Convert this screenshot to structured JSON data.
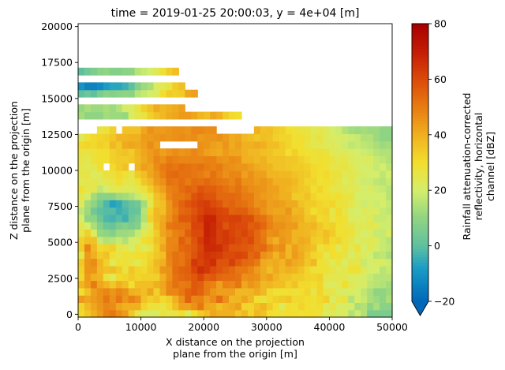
{
  "chart_data": {
    "type": "heatmap",
    "title": "time = 2019-01-25 20:00:03, y = 4e+04 [m]",
    "xlabel": [
      "X distance on the projection",
      "plane from the origin [m]"
    ],
    "ylabel": [
      "Z distance on the projection",
      "plane from the origin [m]"
    ],
    "xlim": [
      0,
      50000
    ],
    "ylim": [
      -200,
      20200
    ],
    "xticks": [
      0,
      10000,
      20000,
      30000,
      40000,
      50000
    ],
    "yticks": [
      0,
      2500,
      5000,
      7500,
      10000,
      12500,
      15000,
      17500,
      20000
    ],
    "colorbar": {
      "label": [
        "Rainfall attenuation-corrected",
        "reflectivity, horizontal",
        "channel [dBZ]"
      ],
      "range": [
        -20,
        80
      ],
      "ticks": [
        -20,
        0,
        20,
        40,
        60,
        80
      ],
      "extend": "min",
      "colormap_stops": [
        {
          "value": -20,
          "color": "#0067b8"
        },
        {
          "value": -8,
          "color": "#1a9cc6"
        },
        {
          "value": 0,
          "color": "#5fc0a0"
        },
        {
          "value": 10,
          "color": "#8fd482"
        },
        {
          "value": 20,
          "color": "#d4ee6c"
        },
        {
          "value": 30,
          "color": "#f2de2e"
        },
        {
          "value": 40,
          "color": "#f0b020"
        },
        {
          "value": 50,
          "color": "#e87c12"
        },
        {
          "value": 60,
          "color": "#db4a0a"
        },
        {
          "value": 70,
          "color": "#c41c04"
        },
        {
          "value": 80,
          "color": "#a80000"
        }
      ]
    },
    "grid": {
      "x_min": 0,
      "x_max": 50000,
      "nx": 50,
      "z_min": -200,
      "z_max": 20200,
      "nz": 40,
      "rows_bottom_to_top": [
        "31,35,40,44,49,51,47,44,35,26,22,22,22,27,25,26,30,23,30,34,37,42,40,40,40,35,38,32,38,36,30,29,29,30,30,29,30,30,28,22,24,22,22,15,19,15,6,6,6,6",
        "32,38,42,45,48,47,42,40,40,40,32,28,28,26,31,37,43,43,46,51,42,41,37,40,41,43,32,32,36,39,34,30,23,30,29,32,30,28,30,23,26,22,21,21,14,15,10,14,9,9",
        "44,42,44,46,51,46,51,45,49,46,36,33,35,31,33,40,46,55,48,49,44,47,53,46,38,39,42,38,30,28,31,33,34,35,31,31,30,29,31,33,22,26,27,15,21,18,14,12,10,14",
        "30,36,43,46,48,45,48,46,40,39,37,42,33,41,48,48,51,55,57,55,50,45,43,43,43,38,38,39,41,38,31,29,29,30,28,30,32,26,32,26,26,22,21,22,20,17,14,10,10,12",
        "39,43,50,42,39,35,40,37,30,37,37,37,40,42,48,52,50,51,57,56,50,49,43,49,48,51,42,45,43,38,39,37,37,33,36,31,31,30,32,24,22,24,30,24,22,21,17,16,15,13",
        "32,44,40,39,28,24,31,32,34,32,33,33,33,40,46,52,54,55,57,61,56,57,54,53,53,52,46,47,46,41,43,39,36,36,34,34,32,32,33,25,25,25,25,22,22,21,18,16,16,16",
        "33,45,45,38,36,37,34,28,35,32,31,34,37,45,46,53,55,56,61,66,64,60,58,56,54,51,51,48,44,41,37,41,38,40,39,36,32,28,29,29,26,24,25,29,29,23,20,20,16,18",
        "35,45,47,39,33,23,29,28,27,24,28,33,38,40,48,52,51,55,64,61,64,66,58,58,62,57,54,53,50,41,40,41,39,44,41,40,35,38,29,27,24,27,21,26,26,18,20,22,22,19",
        "26,44,40,34,36,30,26,29,28,30,30,32,35,37,49,52,51,54,58,62,65,64,63,60,60,61,60,54,56,46,44,39,44,38,44,41,36,32,31,25,30,29,27,21,25,22,20,16,17,14",
        "34,48,38,31,32,33,26,25,21,27,23,26,34,42,48,49,54,55,57,61,67,67,66,62,58,58,57,56,53,54,49,45,47,38,43,40,38,36,28,31,30,24,29,24,28,20,24,21,18,17",
        "33,36,36,18,15,16,18,15,21,22,30,31,36,39,48,48,56,52,58,63,68,66,62,64,62,60,58,60,54,51,43,40,45,43,39,41,40,34,33,36,31,32,28,26,21,23,24,23,18,16",
        "26,33,22,11,10,8,12,12,13,18,24,27,34,42,45,49,50,56,60,60,69,67,62,64,61,59,61,58,54,50,46,47,44,43,39,39,38,36,34,37,34,29,30,28,24,20,22,18,18,22",
        "25,20,14,8,3,2,6,8,6,8,19,25,37,42,51,52,52,53,61,61,69,67,63,58,61,60,60,56,57,54,49,46,46,44,44,39,38,39,35,32,33,30,28,27,23,24,25,24,19,19",
        "20,10,10,3,-2,-3,-1,-4,3,6,15,33,38,41,46,51,57,57,60,64,68,68,62,61,62,62,59,59,53,52,48,44,44,43,41,40,35,36,31,32,27,30,29,22,22,22,24,18,18,19",
        "17,12,4,0,-1,-1,-4,-2,1,2,16,31,38,37,45,49,54,55,58,61,64,63,61,60,55,56,56,52,50,46,43,42,42,45,38,39,34,30,32,33,26,31,26,22,20,23,22,22,18,17",
        "23,13,10,4,-2,-7,-5,-1,2,4,13,25,35,37,45,51,55,58,60,62,63,60,58,54,55,53,52,50,46,47,43,44,43,41,41,36,34,34,32,31,32,28,28,25,22,19,21,19,20,18",
        "25,21,13,9,9,9,12,13,15,18,23,27,36,39,48,51,51,53,58,60,58,58,54,54,54,53,50,50,46,44,43,42,40,40,34,34,36,32,30,30,29,30,27,27,20,20,20,20,20,16",
        "29,25,25,17,20,24,24,23,23,25,28,34,40,43,49,50,53,55,54,58,56,56,54,52,50,52,49,47,46,45,43,43,40,39,37,35,34,30,32,29,26,26,25,24,23,20,22,19,18,16",
        "24,25,25,23,25,26,30,26,25,29,35,38,44,46,52,51,53,50,53,52,54,52,51,50,48,51,46,46,44,45,43,40,40,40,38,35,32,32,29,30,28,26,22,25,21,19,19,17,16,18",
        "26,26,22,24,28,28,31,29,26,34,37,42,45,49,53,54,52,52,51,50,48,52,49,46,48,48,43,46,43,43,39,39,38,38,36,35,34,31,30,31,28,28,24,25,23,21,20,20,17,20",
        "25,24,25,30,N,31,34,36,N,39,43,42,47,50,52,51,53,52,51,52,50,49,50,47,46,45,45,43,41,40,39,36,36,35,34,34,33,31,30,29,26,26,27,24,22,20,21,18,20,17",
        "26,25,28,30,30,33,34,34,35,38,41,44,48,46,50,49,48,48,48,48,49,49,46,45,47,46,40,40,38,40,36,36,36,35,35,33,31,28,30,29,27,25,26,23,21,22,22,18,17,15",
        "27,27,28,30,30,33,35,36,34,39,42,44,46,43,45,47,45,46,48,46,43,42,41,44,42,42,40,38,38,37,36,34,34,30,33,30,29,29,28,28,24,23,23,22,20,19,18,16,15,15",
        "31,32,31,33,32,38,35,41,42,41,43,47,43,N,N,N,N,N,N,46,45,43,42,45,41,43,40,40,41,40,37,37,34,32,30,30,27,25,25,23,23,22,19,17,18,17,16,14,12,13",
        "23,29,31,32,33,35,39,39,40,40,44,44,45,46,45,46,47,46,47,44,45,45,46,44,41,42,38,37,35,37,36,33,32,32,29,30,28,25,27,23,22,21,21,19,18,15,15,12,10,10",
        "N,N,N,27,28,33,N,36,36,36,42,46,44,44,45,46,46,45,48,48,47,47,N,N,N,N,N,N,40,36,37,34,33,30,29,27,27,24,25,23,20,19,15,13,12,13,12,12,10,10",
        "N,N,N,N,N,N,N,N,N,N,N,N,N,N,N,N,N,N,N,N,N,N,N,N,N,N,N,N,N,N,N,N,N,N,N,N,N,N,N,N,N,N,N,N,N,N,N,N,N,N",
        "13,10,10,10,13,12,12,11,22,25,27,33,36,38,41,42,44,44,42,39,37,42,40,34,31,30,N,N,N,N,N,N,N,N,N,N,N,N,N,N,N,N,N,N,N,N,N,N,N,N",
        "11,14,12,12,14,12,15,21,22,27,33,36,41,38,40,41,43,N,N,N,N,N,N,N,N,N,N,N,N,N,N,N,N,N,N,N,N,N,N,N,N,N,N,N,N,N,N,N,N,N",
        "N,N,N,N,N,N,N,N,N,N,N,N,N,N,N,N,N,N,N,N,N,N,N,N,N,N,N,N,N,N,N,N,N,N,N,N,N,N,N,N,N,N,N,N,N,N,N,N,N,N",
        "0,3,0,6,9,8,9,10,9,16,18,20,22,30,34,33,34,42,43,N,N,N,N,N,N,N,N,N,N,N,N,N,N,N,N,N,N,N,N,N,N,N,N,N,N,N,N,N,N,N",
        "-10,-14,-14,-12,-8,-6,-6,-4,0,8,12,14,22,24,27,34,37,N,N,N,N,N,N,N,N,N,N,N,N,N,N,N,N,N,N,N,N,N,N,N,N,N,N,N,N,N,N,N,N,N",
        "N,N,N,N,N,N,N,N,N,N,N,N,N,N,N,N,N,N,N,N,N,N,N,N,N,N,N,N,N,N,N,N,N,N,N,N,N,N,N,N,N,N,N,N,N,N,N,N,N,N",
        "0,4,6,9,10,8,8,9,10,16,18,20,24,28,34,37,N,N,N,N,N,N,N,N,N,N,N,N,N,N,N,N,N,N,N,N,N,N,N,N,N,N,N,N,N,N,N,N,N,N",
        "N,N,N,N,N,N,N,N,N,N,N,N,N,N,N,N,N,N,N,N,N,N,N,N,N,N,N,N,N,N,N,N,N,N,N,N,N,N,N,N,N,N,N,N,N,N,N,N,N,N",
        "N,N,N,N,N,N,N,N,N,N,N,N,N,N,N,N,N,N,N,N,N,N,N,N,N,N,N,N,N,N,N,N,N,N,N,N,N,N,N,N,N,N,N,N,N,N,N,N,N,N",
        "N,N,N,N,N,N,N,N,N,N,N,N,N,N,N,N,N,N,N,N,N,N,N,N,N,N,N,N,N,N,N,N,N,N,N,N,N,N,N,N,N,N,N,N,N,N,N,N,N,N",
        "N,N,N,N,N,N,N,N,N,N,N,N,N,N,N,N,N,N,N,N,N,N,N,N,N,N,N,N,N,N,N,N,N,N,N,N,N,N,N,N,N,N,N,N,N,N,N,N,N,N",
        "N,N,N,N,N,N,N,N,N,N,N,N,N,N,N,N,N,N,N,N,N,N,N,N,N,N,N,N,N,N,N,N,N,N,N,N,N,N,N,N,N,N,N,N,N,N,N,N,N,N",
        "N,N,N,N,N,N,N,N,N,N,N,N,N,N,N,N,N,N,N,N,N,N,N,N,N,N,N,N,N,N,N,N,N,N,N,N,N,N,N,N,N,N,N,N,N,N,N,N,N,N"
      ],
      "bands_note": "N = no data"
    }
  }
}
